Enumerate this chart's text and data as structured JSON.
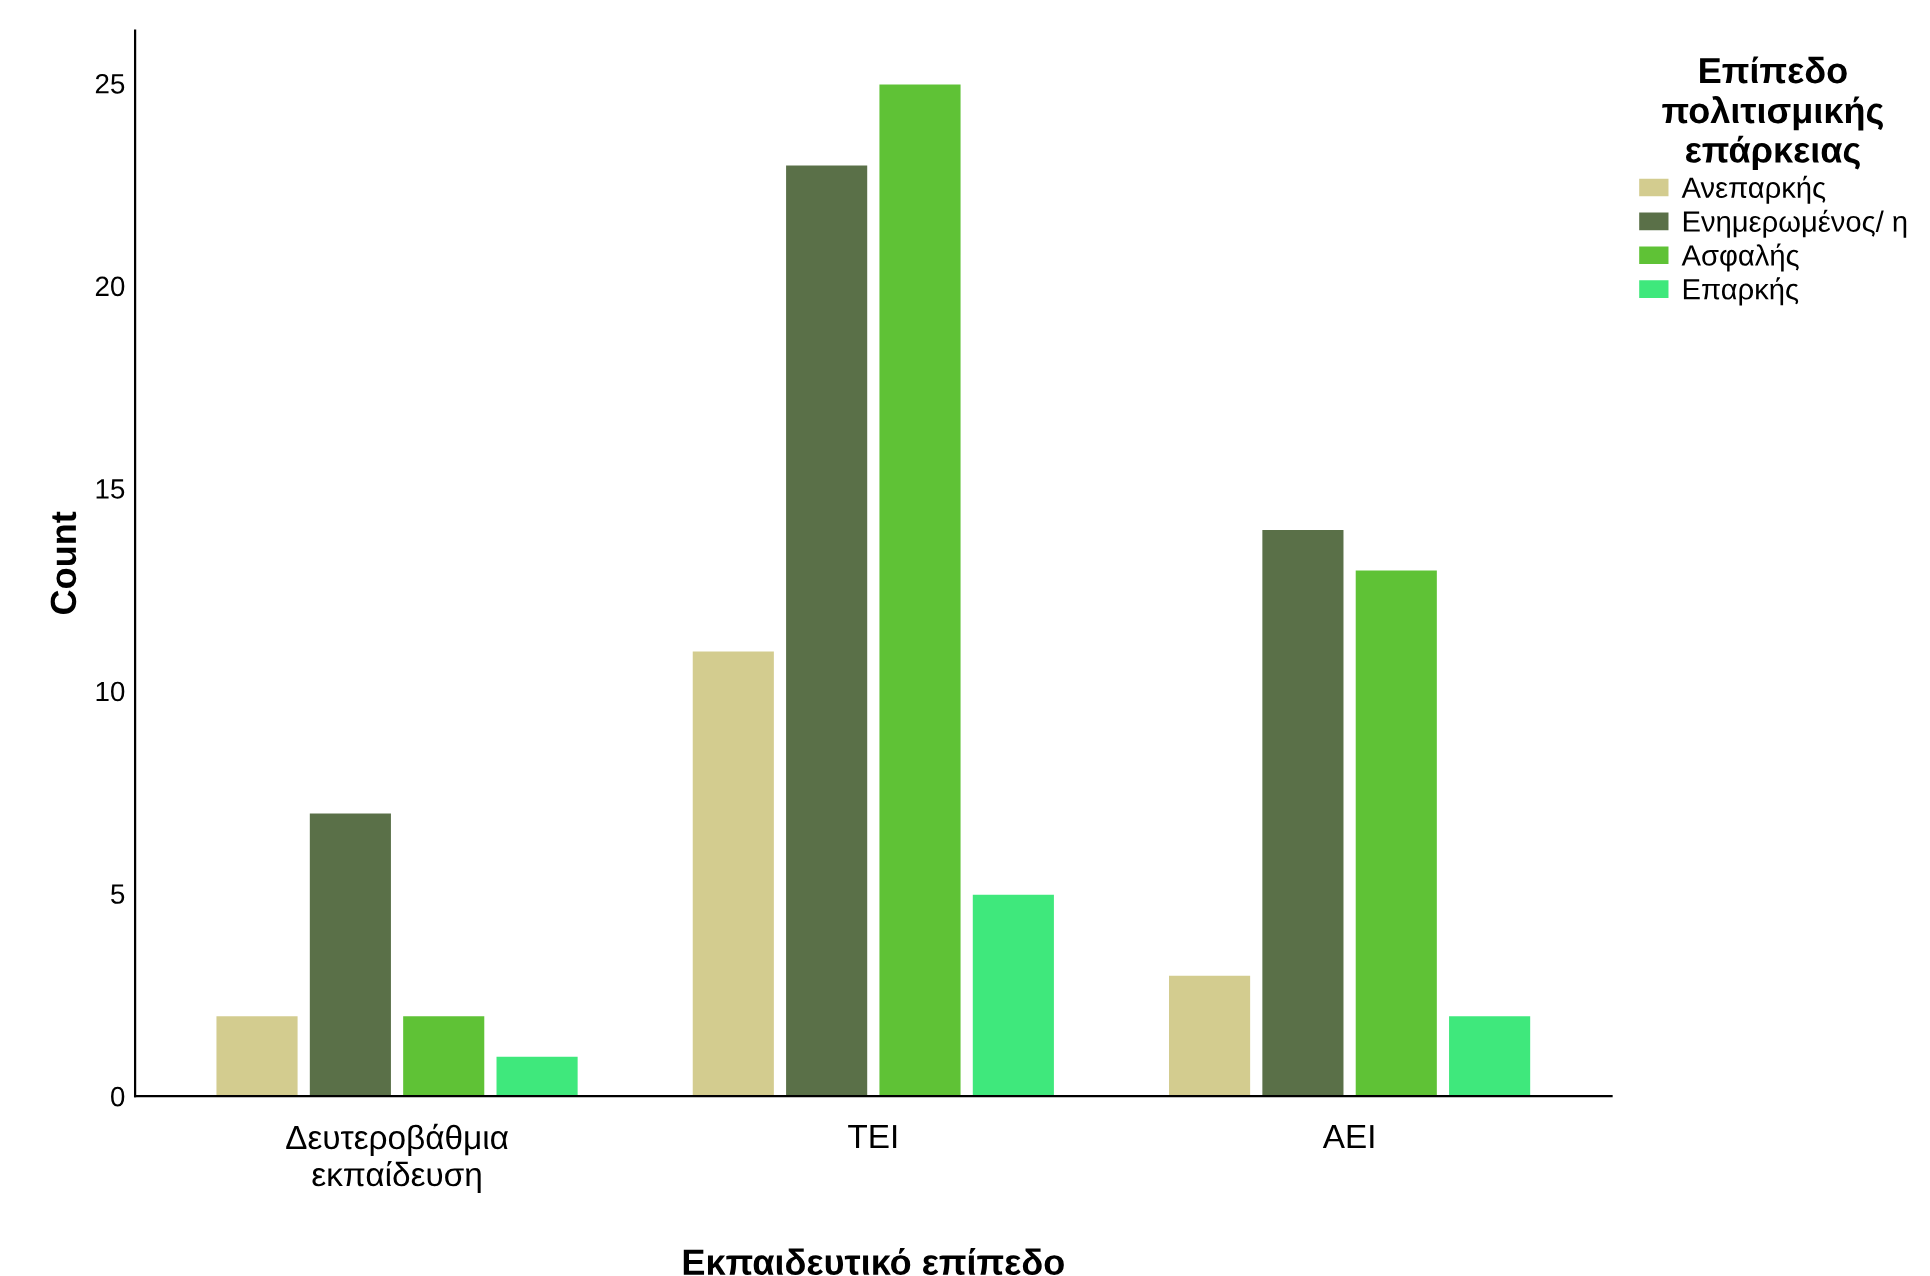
{
  "chart_data": {
    "type": "bar",
    "xlabel": "Εκπαιδευτικό επίπεδο",
    "ylabel": "Count",
    "legend_title": "Επίπεδο\nπολιτισμικής\nεπάρκειας",
    "categories": [
      "Δευτεροβάθμια\nεκπαίδευση",
      "ΤΕΙ",
      "ΑΕΙ"
    ],
    "series": [
      {
        "name": "Ανεπαρκής",
        "color": "#d3cc8f",
        "values": [
          2,
          11,
          3
        ]
      },
      {
        "name": "Ενημερωμένος/ η",
        "color": "#5a7048",
        "values": [
          7,
          23,
          14
        ]
      },
      {
        "name": "Ασφαλής",
        "color": "#5fc236",
        "values": [
          2,
          25,
          13
        ]
      },
      {
        "name": "Επαρκής",
        "color": "#3fe87c",
        "values": [
          1,
          5,
          2
        ]
      }
    ],
    "ylim": [
      0,
      26.3
    ],
    "yticks": [
      0,
      5,
      10,
      15,
      20,
      25
    ],
    "grid": false,
    "legend": "top right"
  }
}
